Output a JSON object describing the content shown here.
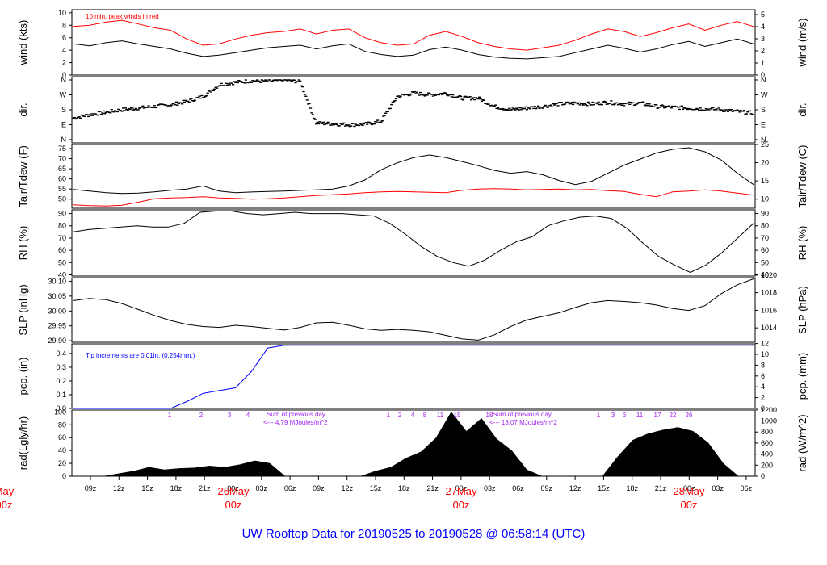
{
  "title": "UW Rooftop Data for 20190525  to  20190528 @ 06:58:14  (UTC)",
  "chart_data": {
    "type": "line",
    "x_ticks": [
      "09z",
      "12z",
      "15z",
      "18z",
      "21z",
      "00z",
      "03z",
      "06z",
      "09z",
      "12z",
      "15z",
      "18z",
      "21z",
      "00z",
      "03z",
      "06z",
      "09z",
      "12z",
      "15z",
      "18z",
      "21z",
      "00z",
      "03z",
      "06z"
    ],
    "day_labels": [
      {
        "date": "May",
        "time": "00z"
      },
      {
        "date": "26May",
        "time": "00z"
      },
      {
        "date": "27May",
        "time": "00z"
      },
      {
        "date": "28May",
        "time": "00z"
      }
    ],
    "panels": {
      "wind": {
        "ylabel": "wind (kts)",
        "ylabel_right": "wind (m/s)",
        "yticks": [
          0,
          2,
          4,
          6,
          8,
          10
        ],
        "yticks_right": [
          0,
          1,
          2,
          3,
          4,
          5
        ],
        "ylim": [
          0,
          10.5
        ],
        "annotation": "10 min. peak winds in red",
        "series": [
          {
            "color": "#000000",
            "values": [
              5.0,
              4.7,
              5.2,
              5.5,
              5.0,
              4.6,
              4.2,
              3.5,
              3.0,
              3.2,
              3.6,
              4.0,
              4.4,
              4.6,
              4.8,
              4.2,
              4.7,
              5.0,
              3.8,
              3.3,
              3.0,
              3.2,
              4.1,
              4.5,
              4.0,
              3.3,
              2.9,
              2.7,
              2.6,
              2.8,
              3.0,
              3.6,
              4.2,
              4.8,
              4.3,
              3.7,
              4.2,
              4.9,
              5.4,
              4.6,
              5.2,
              5.8,
              5.0
            ]
          },
          {
            "color": "#ff0000",
            "values": [
              7.8,
              8.0,
              8.5,
              8.8,
              8.2,
              7.6,
              7.2,
              5.8,
              4.8,
              5.0,
              5.8,
              6.4,
              6.8,
              7.0,
              7.4,
              6.6,
              7.2,
              7.4,
              6.0,
              5.2,
              4.8,
              5.0,
              6.4,
              7.0,
              6.2,
              5.2,
              4.6,
              4.2,
              4.0,
              4.4,
              4.8,
              5.6,
              6.6,
              7.4,
              7.0,
              6.2,
              6.8,
              7.6,
              8.2,
              7.2,
              8.0,
              8.6,
              7.8
            ]
          }
        ]
      },
      "dir": {
        "ylabel": "dir.",
        "ylabel_right": "dir.",
        "yticks": [
          "N",
          "E",
          "S",
          "W",
          "N"
        ],
        "values": [
          130,
          150,
          165,
          180,
          190,
          200,
          210,
          230,
          260,
          330,
          345,
          355,
          350,
          360,
          350,
          100,
          95,
          90,
          92,
          110,
          260,
          280,
          270,
          280,
          250,
          250,
          200,
          180,
          190,
          200,
          215,
          220,
          215,
          225,
          215,
          220,
          200,
          195,
          190,
          185,
          180,
          170,
          160
        ]
      },
      "temp": {
        "ylabel": "Tair/Tdew (F)",
        "ylabel_right": "Tair/Tdew (C)",
        "yticks": [
          50,
          55,
          60,
          65,
          70,
          75
        ],
        "yticks_right": [
          10,
          15,
          20,
          25
        ],
        "ylim": [
          45.5,
          77
        ],
        "series": [
          {
            "name": "Tair",
            "color": "#000000",
            "values": [
              54.8,
              54.0,
              53.2,
              52.8,
              53.0,
              53.6,
              54.4,
              55.0,
              56.5,
              54.0,
              53.2,
              53.5,
              53.8,
              54.0,
              54.3,
              54.6,
              55.0,
              56.5,
              59.5,
              64.5,
              68.0,
              70.5,
              71.8,
              70.5,
              68.6,
              66.5,
              64.2,
              62.8,
              63.6,
              62.0,
              59.2,
              57.2,
              58.8,
              62.8,
              66.8,
              69.8,
              72.8,
              74.6,
              75.4,
              73.4,
              69.4,
              62.8,
              57.2
            ]
          },
          {
            "name": "Tdew",
            "color": "#ff0000",
            "values": [
              47.2,
              46.8,
              46.6,
              47.0,
              48.5,
              50.2,
              50.6,
              50.8,
              51.2,
              50.6,
              50.4,
              50.0,
              50.2,
              50.6,
              51.2,
              51.8,
              52.2,
              52.6,
              53.2,
              53.6,
              53.8,
              53.6,
              53.4,
              53.2,
              54.4,
              55.0,
              55.2,
              55.0,
              54.6,
              54.8,
              55.0,
              54.6,
              54.8,
              54.2,
              53.8,
              52.4,
              51.2,
              53.6,
              54.0,
              54.6,
              54.0,
              53.0,
              52.0
            ]
          }
        ]
      },
      "rh": {
        "ylabel": "RH (%)",
        "ylabel_right": "RH (%)",
        "yticks": [
          40,
          50,
          60,
          70,
          80,
          90
        ],
        "ylim": [
          39,
          93
        ],
        "values": [
          75,
          77,
          78,
          79,
          80,
          79,
          79,
          82,
          91,
          92,
          92,
          90,
          89,
          90,
          91,
          90,
          90,
          90,
          89,
          88,
          82,
          73,
          63,
          55,
          50,
          47,
          52,
          60,
          67,
          71,
          80,
          84,
          87,
          88,
          86,
          78,
          66,
          55,
          48,
          42,
          48,
          58,
          70,
          82
        ]
      },
      "slp": {
        "ylabel": "SLP (inHg)",
        "ylabel_right": "SLP (hPa)",
        "yticks": [
          29.9,
          29.95,
          30.0,
          30.05,
          30.1
        ],
        "yticks_right": [
          1014,
          1016,
          1018,
          1020
        ],
        "ylim": [
          29.895,
          30.112
        ],
        "values": [
          30.035,
          30.042,
          30.038,
          30.025,
          30.005,
          29.985,
          29.968,
          29.955,
          29.948,
          29.945,
          29.952,
          29.948,
          29.942,
          29.936,
          29.945,
          29.96,
          29.962,
          29.952,
          29.94,
          29.935,
          29.938,
          29.935,
          29.93,
          29.918,
          29.906,
          29.902,
          29.92,
          29.948,
          29.97,
          29.982,
          29.994,
          30.012,
          30.028,
          30.035,
          30.032,
          30.028,
          30.02,
          30.008,
          30.002,
          30.018,
          30.058,
          30.088,
          30.108
        ]
      },
      "pcp": {
        "ylabel": "pcp. (in)",
        "ylabel_right": "pcp. (mm)",
        "yticks": [
          0.0,
          0.1,
          0.2,
          0.3,
          0.4
        ],
        "yticks_right": [
          0,
          2,
          4,
          6,
          8,
          10,
          12
        ],
        "ylim": [
          0,
          0.47
        ],
        "annotation": "Tip increments are 0.01in. (0.254mm.)",
        "values": [
          0,
          0,
          0,
          0,
          0,
          0,
          0,
          0.05,
          0.11,
          0.13,
          0.15,
          0.27,
          0.44,
          0.46,
          0.46,
          0.46,
          0.46,
          0.46,
          0.46,
          0.46,
          0.46,
          0.46,
          0.46,
          0.46,
          0.46,
          0.46,
          0.46,
          0.46,
          0.46,
          0.46,
          0.46,
          0.46,
          0.46,
          0.46,
          0.46,
          0.46,
          0.46,
          0.46,
          0.46,
          0.46,
          0.46,
          0.46,
          0.46
        ]
      },
      "rad": {
        "ylabel": "rad(Lgly/hr)",
        "ylabel_right": "rad (W/m^2)",
        "yticks": [
          0,
          20,
          40,
          60,
          80,
          100
        ],
        "yticks_right": [
          0,
          200,
          400,
          600,
          800,
          1000,
          1200
        ],
        "ylim": [
          0,
          103
        ],
        "values": [
          0,
          0,
          0,
          4,
          8,
          14,
          10,
          12,
          13,
          16,
          14,
          18,
          24,
          20,
          0,
          0,
          0,
          0,
          0,
          0,
          8,
          14,
          28,
          38,
          60,
          100,
          70,
          90,
          58,
          40,
          10,
          0,
          0,
          0,
          0,
          0,
          30,
          56,
          66,
          72,
          76,
          70,
          52,
          20,
          0,
          0
        ],
        "day_sums": [
          {
            "label": "Sum of previous day",
            "value": "<--- 4.79 MJoules/m^2"
          },
          {
            "label": "Sum of previous day",
            "value": "<--- 18.07 MJoules/m^2"
          }
        ],
        "hour_marks": [
          "1",
          "2",
          "3",
          "4",
          "1",
          "2",
          "4",
          "8",
          "11",
          "15",
          "18",
          "1",
          "3",
          "6",
          "11",
          "17",
          "22",
          "26"
        ]
      }
    }
  }
}
